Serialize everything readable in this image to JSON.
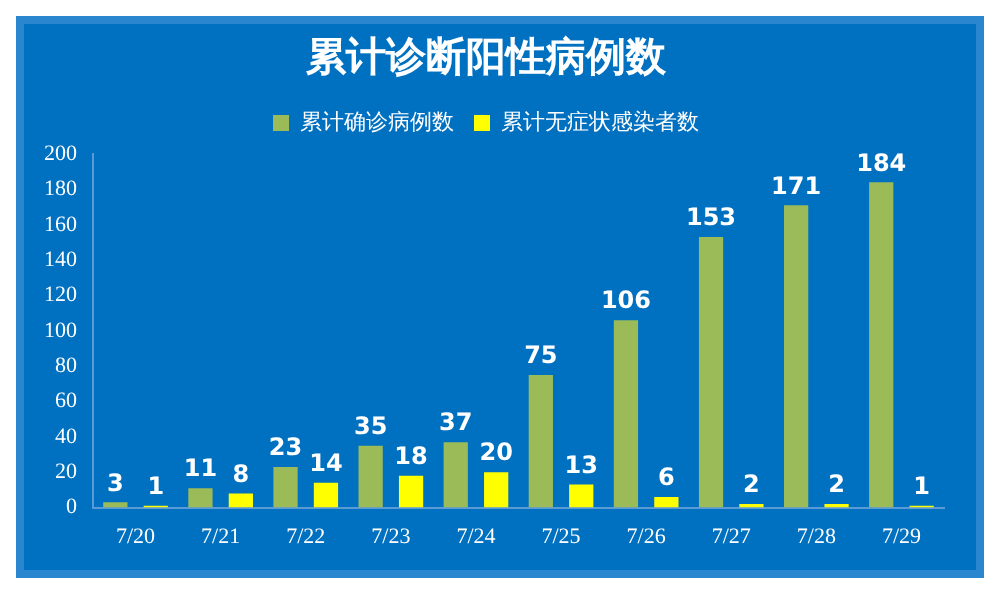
{
  "chart_data": {
    "type": "bar",
    "title": "累计诊断阳性病例数",
    "categories": [
      "7/20",
      "7/21",
      "7/22",
      "7/23",
      "7/24",
      "7/25",
      "7/26",
      "7/27",
      "7/28",
      "7/29"
    ],
    "series": [
      {
        "name": "累计确诊病例数",
        "color": "#9bbb59",
        "values": [
          3,
          11,
          23,
          35,
          37,
          75,
          106,
          153,
          171,
          184
        ]
      },
      {
        "name": "累计无症状感染者数",
        "color": "#ffff00",
        "values": [
          1,
          8,
          14,
          18,
          20,
          13,
          6,
          2,
          2,
          1
        ]
      }
    ],
    "ylim": [
      0,
      200
    ],
    "yticks": [
      0,
      20,
      40,
      60,
      80,
      100,
      120,
      140,
      160,
      180,
      200
    ],
    "grid": false,
    "legend": "top",
    "data_labels": true
  }
}
